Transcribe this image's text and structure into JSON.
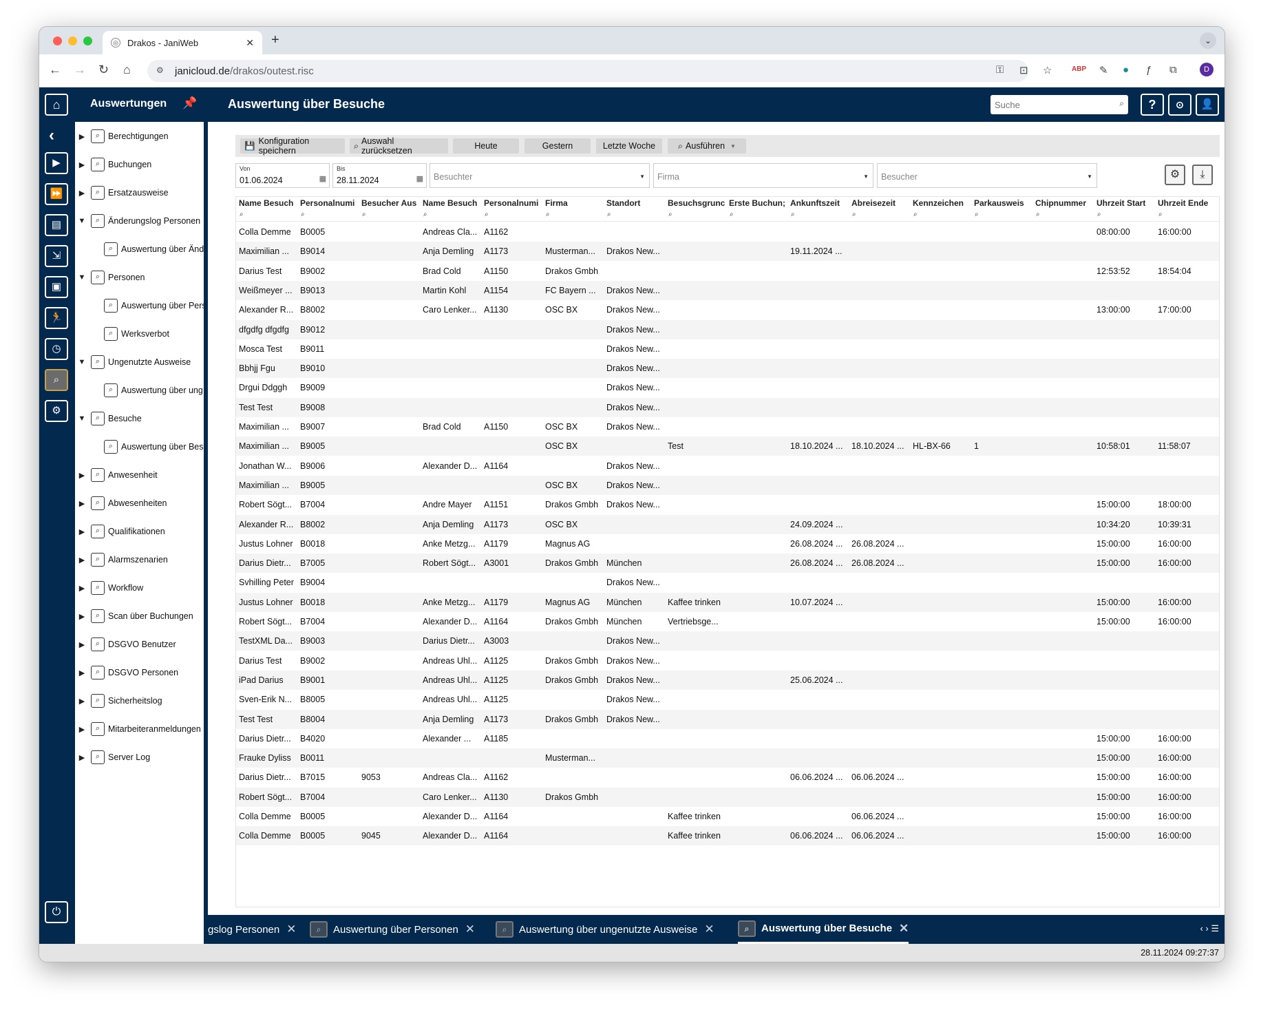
{
  "browser": {
    "tab_title": "Drakos - JaniWeb",
    "url_host": "janicloud.de",
    "url_path": "/drakos/outest.risc",
    "avatar_letter": "D"
  },
  "header": {
    "nav_title": "Auswertungen",
    "page_title": "Auswertung über Besuche",
    "search_placeholder": "Suche",
    "help_label": "?"
  },
  "tree": [
    {
      "label": "Berechtigungen",
      "level": 0,
      "expanded": false
    },
    {
      "label": "Buchungen",
      "level": 0,
      "expanded": false
    },
    {
      "label": "Ersatzausweise",
      "level": 0,
      "expanded": false
    },
    {
      "label": "Änderungslog Personen",
      "level": 0,
      "expanded": true
    },
    {
      "label": "Auswertung über Änd",
      "level": 1
    },
    {
      "label": "Personen",
      "level": 0,
      "expanded": true
    },
    {
      "label": "Auswertung über Pers",
      "level": 1
    },
    {
      "label": "Werksverbot",
      "level": 1
    },
    {
      "label": "Ungenutzte Ausweise",
      "level": 0,
      "expanded": true
    },
    {
      "label": "Auswertung über ung",
      "level": 1
    },
    {
      "label": "Besuche",
      "level": 0,
      "expanded": true
    },
    {
      "label": "Auswertung über Bes",
      "level": 1
    },
    {
      "label": "Anwesenheit",
      "level": 0,
      "expanded": false
    },
    {
      "label": "Abwesenheiten",
      "level": 0,
      "expanded": false
    },
    {
      "label": "Qualifikationen",
      "level": 0,
      "expanded": false
    },
    {
      "label": "Alarmszenarien",
      "level": 0,
      "expanded": false
    },
    {
      "label": "Workflow",
      "level": 0,
      "expanded": false
    },
    {
      "label": "Scan über Buchungen",
      "level": 0,
      "expanded": false
    },
    {
      "label": "DSGVO Benutzer",
      "level": 0,
      "expanded": false
    },
    {
      "label": "DSGVO Personen",
      "level": 0,
      "expanded": false
    },
    {
      "label": "Sicherheitslog",
      "level": 0,
      "expanded": false
    },
    {
      "label": "Mitarbeiteranmeldungen",
      "level": 0,
      "expanded": false
    },
    {
      "label": "Server Log",
      "level": 0,
      "expanded": false
    }
  ],
  "toolbar": {
    "save_config": "Konfiguration speichern",
    "reset_selection": "Auswahl zurücksetzen",
    "today": "Heute",
    "yesterday": "Gestern",
    "last_week": "Letzte Woche",
    "execute": "Ausführen"
  },
  "filters": {
    "from_label": "Von",
    "from_value": "01.06.2024",
    "to_label": "Bis",
    "to_value": "28.11.2024",
    "visited_placeholder": "Besuchter",
    "company_placeholder": "Firma",
    "visitor_placeholder": "Besucher"
  },
  "table": {
    "columns": [
      "Name Besuch",
      "Personalnumi",
      "Besucher Aus",
      "Name Besuch",
      "Personalnumi",
      "Firma",
      "Standort",
      "Besuchsgrunc",
      "Erste Buchun;",
      "Ankunftszeit",
      "Abreisezeit",
      "Kennzeichen",
      "Parkausweis",
      "Chipnummer",
      "Uhrzeit Start",
      "Uhrzeit Ende"
    ],
    "rows": [
      [
        "Colla Demme",
        "B0005",
        "",
        "Andreas Cla...",
        "A1162",
        "",
        "",
        "",
        "",
        "",
        "",
        "",
        "",
        "",
        "08:00:00",
        "16:00:00"
      ],
      [
        "Maximilian ...",
        "B9014",
        "",
        "Anja Demling",
        "A1173",
        "Musterman...",
        "Drakos New...",
        "",
        "",
        "19.11.2024 ...",
        "",
        "",
        "",
        "",
        "",
        ""
      ],
      [
        "Darius Test",
        "B9002",
        "",
        "Brad Cold",
        "A1150",
        "Drakos Gmbh",
        "",
        "",
        "",
        "",
        "",
        "",
        "",
        "",
        "12:53:52",
        "18:54:04"
      ],
      [
        "Weißmeyer ...",
        "B9013",
        "",
        "Martin Kohl",
        "A1154",
        "FC Bayern ...",
        "Drakos New...",
        "",
        "",
        "",
        "",
        "",
        "",
        "",
        "",
        ""
      ],
      [
        "Alexander R...",
        "B8002",
        "",
        "Caro Lenker...",
        "A1130",
        "OSC BX",
        "Drakos New...",
        "",
        "",
        "",
        "",
        "",
        "",
        "",
        "13:00:00",
        "17:00:00"
      ],
      [
        "dfgdfg dfgdfg",
        "B9012",
        "",
        "",
        "",
        "",
        "Drakos New...",
        "",
        "",
        "",
        "",
        "",
        "",
        "",
        "",
        ""
      ],
      [
        "Mosca Test",
        "B9011",
        "",
        "",
        "",
        "",
        "Drakos New...",
        "",
        "",
        "",
        "",
        "",
        "",
        "",
        "",
        ""
      ],
      [
        "Bbhjj Fgu",
        "B9010",
        "",
        "",
        "",
        "",
        "Drakos New...",
        "",
        "",
        "",
        "",
        "",
        "",
        "",
        "",
        ""
      ],
      [
        "Drgui Ddggh",
        "B9009",
        "",
        "",
        "",
        "",
        "Drakos New...",
        "",
        "",
        "",
        "",
        "",
        "",
        "",
        "",
        ""
      ],
      [
        "Test Test",
        "B9008",
        "",
        "",
        "",
        "",
        "Drakos New...",
        "",
        "",
        "",
        "",
        "",
        "",
        "",
        "",
        ""
      ],
      [
        "Maximilian ...",
        "B9007",
        "",
        "Brad Cold",
        "A1150",
        "OSC BX",
        "Drakos New...",
        "",
        "",
        "",
        "",
        "",
        "",
        "",
        "",
        ""
      ],
      [
        "Maximilian ...",
        "B9005",
        "",
        "",
        "",
        "OSC BX",
        "",
        "Test",
        "",
        "18.10.2024 ...",
        "18.10.2024 ...",
        "HL-BX-66",
        "1",
        "",
        "10:58:01",
        "11:58:07"
      ],
      [
        "Jonathan W...",
        "B9006",
        "",
        "Alexander D...",
        "A1164",
        "",
        "Drakos New...",
        "",
        "",
        "",
        "",
        "",
        "",
        "",
        "",
        ""
      ],
      [
        "Maximilian ...",
        "B9005",
        "",
        "",
        "",
        "OSC BX",
        "Drakos New...",
        "",
        "",
        "",
        "",
        "",
        "",
        "",
        "",
        ""
      ],
      [
        "Robert Sögt...",
        "B7004",
        "",
        "Andre Mayer",
        "A1151",
        "Drakos Gmbh",
        "Drakos New...",
        "",
        "",
        "",
        "",
        "",
        "",
        "",
        "15:00:00",
        "18:00:00"
      ],
      [
        "Alexander R...",
        "B8002",
        "",
        "Anja Demling",
        "A1173",
        "OSC BX",
        "",
        "",
        "",
        "24.09.2024 ...",
        "",
        "",
        "",
        "",
        "10:34:20",
        "10:39:31"
      ],
      [
        "Justus Lohner",
        "B0018",
        "",
        "Anke Metzg...",
        "A1179",
        "Magnus AG",
        "",
        "",
        "",
        "26.08.2024 ...",
        "26.08.2024 ...",
        "",
        "",
        "",
        "15:00:00",
        "16:00:00"
      ],
      [
        "Darius Dietr...",
        "B7005",
        "",
        "Robert Sögt...",
        "A3001",
        "Drakos Gmbh",
        "München",
        "",
        "",
        "26.08.2024 ...",
        "26.08.2024 ...",
        "",
        "",
        "",
        "15:00:00",
        "16:00:00"
      ],
      [
        "Svhilling Peter",
        "B9004",
        "",
        "",
        "",
        "",
        "Drakos New...",
        "",
        "",
        "",
        "",
        "",
        "",
        "",
        "",
        ""
      ],
      [
        "Justus Lohner",
        "B0018",
        "",
        "Anke Metzg...",
        "A1179",
        "Magnus AG",
        "München",
        "Kaffee trinken",
        "",
        "10.07.2024 ...",
        "",
        "",
        "",
        "",
        "15:00:00",
        "16:00:00"
      ],
      [
        "Robert Sögt...",
        "B7004",
        "",
        "Alexander D...",
        "A1164",
        "Drakos Gmbh",
        "München",
        "Vertriebsge...",
        "",
        "",
        "",
        "",
        "",
        "",
        "15:00:00",
        "16:00:00"
      ],
      [
        "TestXML Da...",
        "B9003",
        "",
        "Darius Dietr...",
        "A3003",
        "",
        "Drakos New...",
        "",
        "",
        "",
        "",
        "",
        "",
        "",
        "",
        ""
      ],
      [
        "Darius Test",
        "B9002",
        "",
        "Andreas Uhl...",
        "A1125",
        "Drakos Gmbh",
        "Drakos New...",
        "",
        "",
        "",
        "",
        "",
        "",
        "",
        "",
        ""
      ],
      [
        "iPad Darius",
        "B9001",
        "",
        "Andreas Uhl...",
        "A1125",
        "Drakos Gmbh",
        "Drakos New...",
        "",
        "",
        "25.06.2024 ...",
        "",
        "",
        "",
        "",
        "",
        ""
      ],
      [
        "Sven-Erik N...",
        "B8005",
        "",
        "Andreas Uhl...",
        "A1125",
        "",
        "Drakos New...",
        "",
        "",
        "",
        "",
        "",
        "",
        "",
        "",
        ""
      ],
      [
        "Test Test",
        "B8004",
        "",
        "Anja Demling",
        "A1173",
        "Drakos Gmbh",
        "Drakos New...",
        "",
        "",
        "",
        "",
        "",
        "",
        "",
        "",
        ""
      ],
      [
        "Darius Dietr...",
        "B4020",
        "",
        "Alexander ...",
        "A1185",
        "",
        "",
        "",
        "",
        "",
        "",
        "",
        "",
        "",
        "15:00:00",
        "16:00:00"
      ],
      [
        "Frauke Dyliss",
        "B0011",
        "",
        "",
        "",
        "Musterman...",
        "",
        "",
        "",
        "",
        "",
        "",
        "",
        "",
        "15:00:00",
        "16:00:00"
      ],
      [
        "Darius Dietr...",
        "B7015",
        "9053",
        "Andreas Cla...",
        "A1162",
        "",
        "",
        "",
        "",
        "06.06.2024 ...",
        "06.06.2024 ...",
        "",
        "",
        "",
        "15:00:00",
        "16:00:00"
      ],
      [
        "Robert Sögt...",
        "B7004",
        "",
        "Caro Lenker...",
        "A1130",
        "Drakos Gmbh",
        "",
        "",
        "",
        "",
        "",
        "",
        "",
        "",
        "15:00:00",
        "16:00:00"
      ],
      [
        "Colla Demme",
        "B0005",
        "",
        "Alexander D...",
        "A1164",
        "",
        "",
        "Kaffee trinken",
        "",
        "",
        "06.06.2024 ...",
        "",
        "",
        "",
        "15:00:00",
        "16:00:00"
      ],
      [
        "Colla Demme",
        "B0005",
        "9045",
        "Alexander D...",
        "A1164",
        "",
        "",
        "Kaffee trinken",
        "",
        "06.06.2024 ...",
        "06.06.2024 ...",
        "",
        "",
        "",
        "15:00:00",
        "16:00:00"
      ]
    ]
  },
  "bottom_tabs": [
    {
      "label": "gslog Personen",
      "active": false,
      "icon": false
    },
    {
      "label": "Auswertung über Personen",
      "active": false,
      "icon": true
    },
    {
      "label": "Auswertung über ungenutzte Ausweise",
      "active": false,
      "icon": true
    },
    {
      "label": "Auswertung über Besuche",
      "active": true,
      "icon": true
    }
  ],
  "status": {
    "datetime": "28.11.2024 09:27:37"
  },
  "colors": {
    "navy": "#04294f",
    "active_icon_border": "#c9a14a"
  }
}
